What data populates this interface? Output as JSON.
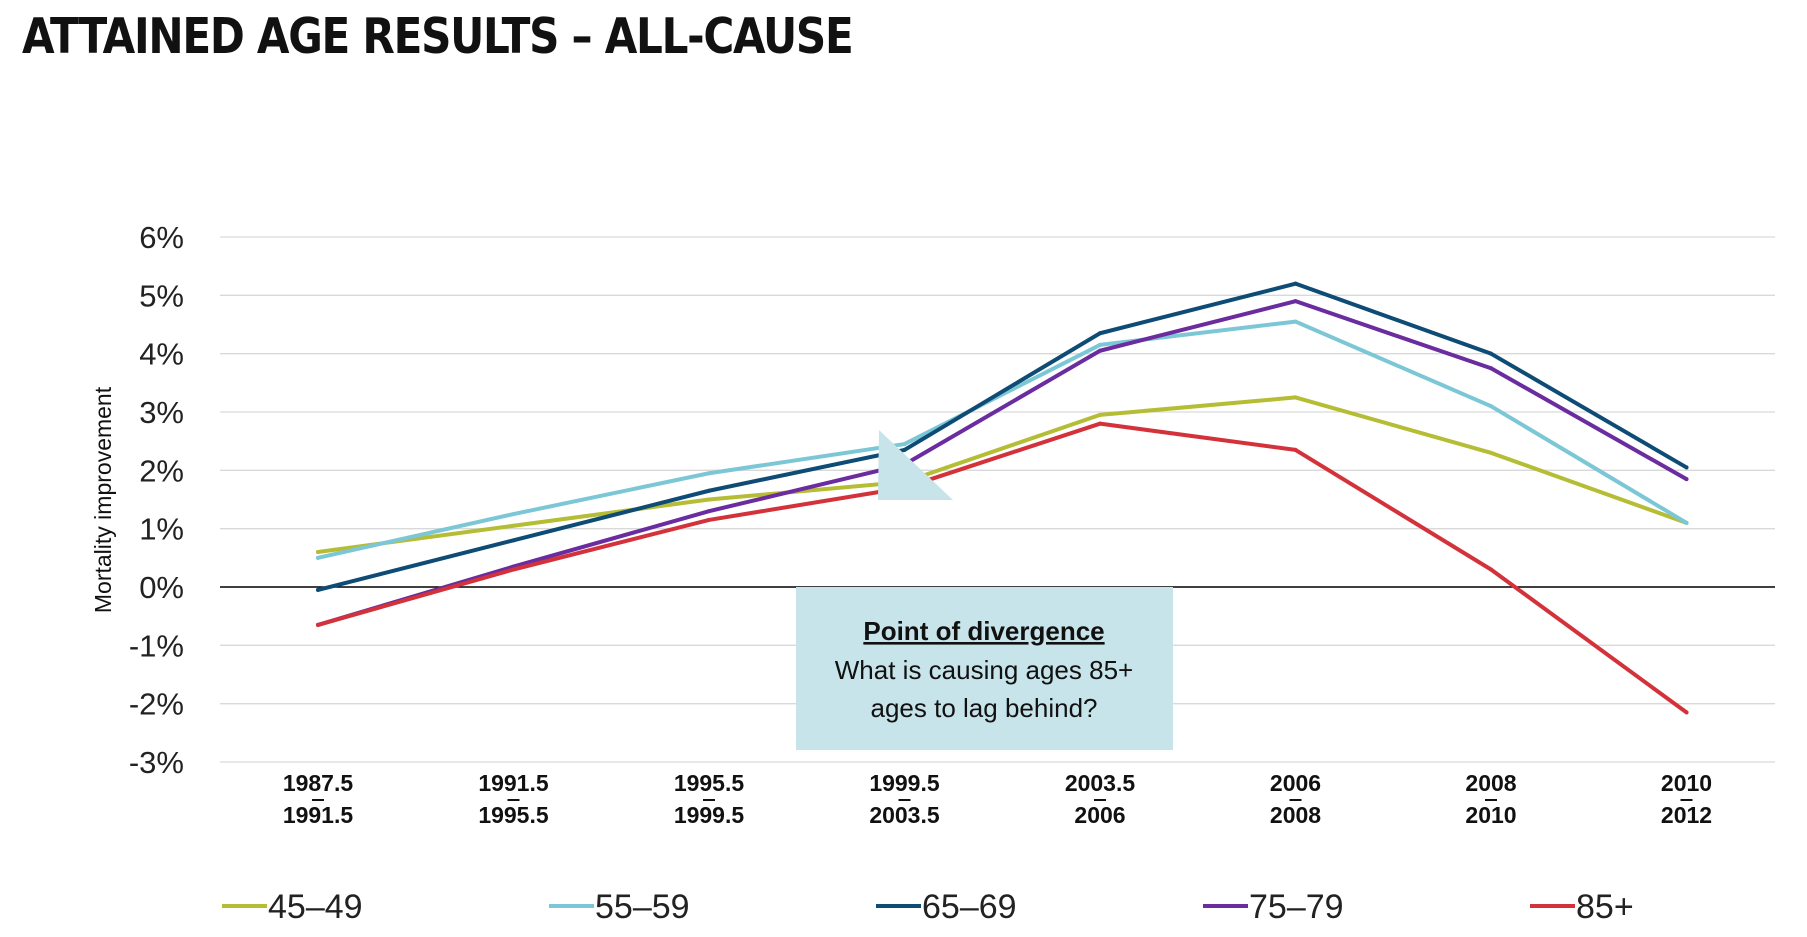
{
  "title": "ATTAINED AGE RESULTS – ALL-CAUSE",
  "callout": {
    "title": "Point of divergence",
    "line1": "What is causing ages 85+",
    "line2": "ages to lag behind?"
  },
  "chart_data": {
    "type": "line",
    "ylabel": "Mortality improvement",
    "ylim": [
      -3,
      6
    ],
    "yticks": [
      "6%",
      "5%",
      "4%",
      "3%",
      "2%",
      "1%",
      "0%",
      "-1%",
      "-2%",
      "-3%"
    ],
    "grid": true,
    "legend_position": "bottom",
    "categories": [
      [
        "1987.5",
        "1991.5"
      ],
      [
        "1991.5",
        "1995.5"
      ],
      [
        "1995.5",
        "1999.5"
      ],
      [
        "1999.5",
        "2003.5"
      ],
      [
        "2003.5",
        "2006"
      ],
      [
        "2006",
        "2008"
      ],
      [
        "2008",
        "2010"
      ],
      [
        "2010",
        "2012"
      ]
    ],
    "series": [
      {
        "name": "45–49",
        "color": "#B5BD35",
        "values": [
          0.6,
          1.05,
          1.5,
          1.8,
          2.95,
          3.25,
          2.3,
          1.1
        ]
      },
      {
        "name": "55–59",
        "color": "#7CC7D6",
        "values": [
          0.5,
          1.25,
          1.95,
          2.45,
          4.15,
          4.55,
          3.1,
          1.1
        ]
      },
      {
        "name": "65–69",
        "color": "#0E4C75",
        "values": [
          -0.05,
          0.8,
          1.65,
          2.35,
          4.35,
          5.2,
          4.0,
          2.05
        ]
      },
      {
        "name": "75–79",
        "color": "#6A2C9E",
        "values": [
          -0.65,
          0.35,
          1.3,
          2.1,
          4.05,
          4.9,
          3.75,
          1.85
        ]
      },
      {
        "name": "85+",
        "color": "#D4323A",
        "values": [
          -0.65,
          0.3,
          1.15,
          1.7,
          2.8,
          2.35,
          0.3,
          -2.15
        ]
      }
    ]
  }
}
